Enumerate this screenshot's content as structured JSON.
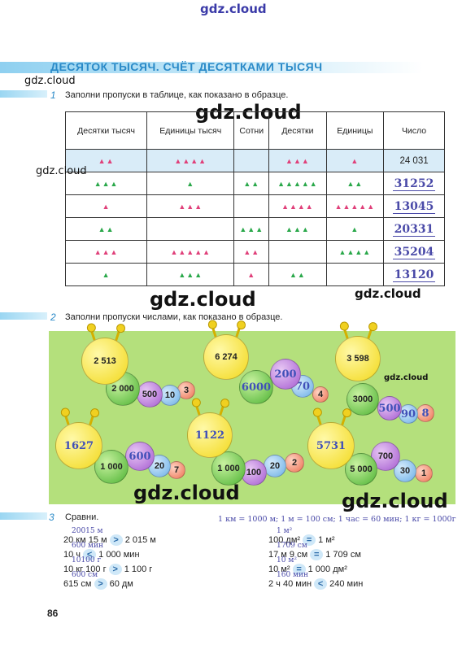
{
  "watermark": "gdz.cloud",
  "title": "ДЕСЯТОК ТЫСЯЧ. СЧЁТ ДЕСЯТКАМИ ТЫСЯЧ",
  "task1": {
    "number": "1",
    "text": "Заполни пропуски в таблице, как показано в образце.",
    "headers": [
      "Десятки тысяч",
      "Единицы тысяч",
      "Сотни",
      "Десятки",
      "Единицы",
      "Число"
    ],
    "rows": [
      {
        "counts": [
          2,
          4,
          0,
          3,
          1
        ],
        "number": "24 031",
        "sample": true
      },
      {
        "counts": [
          3,
          1,
          2,
          5,
          2
        ],
        "number": "31252"
      },
      {
        "counts": [
          1,
          3,
          0,
          4,
          5
        ],
        "number": "13045"
      },
      {
        "counts": [
          2,
          0,
          3,
          3,
          1
        ],
        "number": "20331"
      },
      {
        "counts": [
          3,
          5,
          2,
          0,
          4
        ],
        "number": "35204"
      },
      {
        "counts": [
          1,
          3,
          1,
          2,
          0
        ],
        "number": "13120"
      }
    ]
  },
  "task2": {
    "number": "2",
    "text": "Заполни пропуски числами, как показано в образце.",
    "caterpillars": [
      {
        "head": "2 513",
        "parts": [
          "2 000",
          "500",
          "10",
          "3"
        ]
      },
      {
        "head": "6 274",
        "parts": [
          "6000",
          "200",
          "70",
          "4"
        ]
      },
      {
        "head": "3 598",
        "parts": [
          "3000",
          "500",
          "90",
          "8"
        ]
      },
      {
        "head": "1627",
        "parts": [
          "1 000",
          "600",
          "20",
          "7"
        ]
      },
      {
        "head": "1122",
        "parts": [
          "1 000",
          "100",
          "20",
          "2"
        ]
      },
      {
        "head": "5731",
        "parts": [
          "5 000",
          "700",
          "30",
          "1"
        ]
      }
    ]
  },
  "task3": {
    "number": "3",
    "text": "Сравни.",
    "note": "1 км = 1000 м; 1 м = 100 см; 1 час = 60 мин; 1 кг = 1000г",
    "left": [
      {
        "hint": "20015 м",
        "left": "20 км 15 м",
        "sign": ">",
        "right": "2 015 м"
      },
      {
        "hint": "600 мин",
        "left": "10 ч",
        "sign": "<",
        "right": "1 000 мин"
      },
      {
        "hint": "10100 г",
        "left": "10 кг 100 г",
        "sign": ">",
        "right": "1 100 г"
      },
      {
        "hint": "600 см",
        "left": "615 см",
        "sign": ">",
        "right": "60 дм"
      }
    ],
    "right": [
      {
        "hint": "1 м²",
        "left": "100 дм²",
        "sign": "=",
        "right": "1 м²"
      },
      {
        "hint": "1709 см",
        "left": "17 м 9 см",
        "sign": "=",
        "right": "1 709 см"
      },
      {
        "hint": "10 м²",
        "left": "10 м²",
        "sign": "=",
        "right": "1 000 дм²"
      },
      {
        "hint": "160 мин",
        "left": "2 ч 40 мин",
        "sign": "<",
        "right": "240 мин"
      }
    ]
  },
  "page_number": "86"
}
